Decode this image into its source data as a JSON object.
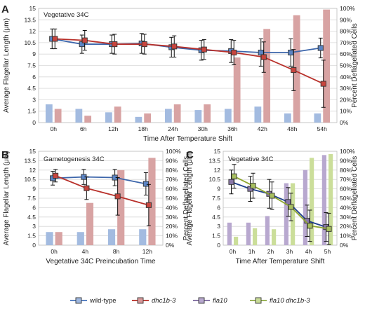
{
  "chart_data": [
    {
      "panel": "A",
      "type": "bar+line",
      "title": "Vegetative 34C",
      "xlabel": "Time After Temperature Shift",
      "ylabel": "Average Flagellar Length (μm)",
      "y2label": "Percent Deflagellated Cells",
      "ylim": [
        0,
        15
      ],
      "yticks": [
        "0",
        "1.5",
        "3",
        "4.5",
        "6",
        "7.5",
        "9",
        "10.5",
        "12",
        "13.5",
        "15"
      ],
      "y2lim": [
        0,
        100
      ],
      "y2ticks": [
        "0%",
        "10%",
        "20%",
        "30%",
        "40%",
        "50%",
        "60%",
        "70%",
        "80%",
        "90%",
        "100%"
      ],
      "categories": [
        "0h",
        "6h",
        "12h",
        "18h",
        "24h",
        "30h",
        "36h",
        "42h",
        "48h",
        "54h"
      ],
      "bars": [
        {
          "series": "wild-type",
          "values": [
            16,
            12,
            9,
            5,
            12,
            11,
            12,
            14,
            8,
            8
          ]
        },
        {
          "series": "dhc1b-3",
          "values": [
            12,
            6,
            14,
            8,
            16,
            16,
            57,
            82,
            94,
            99
          ]
        }
      ],
      "lines": [
        {
          "series": "wild-type",
          "values": [
            11.0,
            10.3,
            10.3,
            10.4,
            9.9,
            9.5,
            9.4,
            9.2,
            9.2,
            9.8
          ],
          "err": [
            1.3,
            1.2,
            1.2,
            1.3,
            1.3,
            1.3,
            1.5,
            1.8,
            1.8,
            1.3
          ]
        },
        {
          "series": "dhc1b-3",
          "values": [
            11.0,
            10.8,
            10.3,
            10.3,
            10.0,
            9.6,
            9.2,
            8.6,
            6.9,
            5.1
          ],
          "err": [
            1.3,
            1.3,
            1.3,
            1.3,
            1.4,
            1.3,
            1.6,
            2.0,
            2.7,
            3.1
          ]
        }
      ]
    },
    {
      "panel": "B",
      "type": "bar+line",
      "title": "Gametogenesis 34C",
      "xlabel": "Vegetative 34C Preincubation Time",
      "ylabel": "Average Flagellar Length (μm)",
      "y2label": "Percent Deflagellated Cells",
      "ylim": [
        0,
        15
      ],
      "yticks": [
        "0",
        "1.5",
        "3",
        "4.5",
        "6",
        "7.5",
        "9",
        "10.5",
        "12",
        "13.5",
        "15"
      ],
      "y2lim": [
        0,
        100
      ],
      "y2ticks": [
        "0%",
        "10%",
        "20%",
        "30%",
        "40%",
        "50%",
        "60%",
        "70%",
        "80%",
        "90%",
        "100%"
      ],
      "categories": [
        "0h",
        "4h",
        "8h",
        "12h"
      ],
      "bars": [
        {
          "series": "wild-type",
          "values": [
            14,
            14,
            17,
            17
          ]
        },
        {
          "series": "dhc1b-3",
          "values": [
            14,
            45,
            80,
            93
          ]
        }
      ],
      "lines": [
        {
          "series": "wild-type",
          "values": [
            10.7,
            10.9,
            10.8,
            9.8
          ],
          "err": [
            1.1,
            1.2,
            1.3,
            1.8
          ]
        },
        {
          "series": "dhc1b-3",
          "values": [
            11.1,
            9.1,
            7.8,
            6.4
          ],
          "err": [
            1.0,
            1.8,
            3.0,
            3.3
          ]
        }
      ]
    },
    {
      "panel": "C",
      "type": "bar+line",
      "title": "Vegetative 34C",
      "xlabel": "Time After Temperature Shift",
      "ylabel": "Average Flagellar Length (μm)",
      "y2label": "Percent Deflagellated Cells",
      "ylim": [
        0,
        15
      ],
      "yticks": [
        "0",
        "1.5",
        "3",
        "4.5",
        "6",
        "7.5",
        "9",
        "10.5",
        "12",
        "13.5",
        "15"
      ],
      "y2lim": [
        0,
        100
      ],
      "y2ticks": [
        "0%",
        "10%",
        "20%",
        "30%",
        "40%",
        "50%",
        "60%",
        "70%",
        "80%",
        "90%",
        "100%"
      ],
      "categories": [
        "0h",
        "1h",
        "2h",
        "3h",
        "4h",
        "5h"
      ],
      "bars": [
        {
          "series": "fla10",
          "values": [
            24,
            24,
            31,
            66,
            80,
            96
          ]
        },
        {
          "series": "fla10 dhc1b-3",
          "values": [
            9,
            18,
            17,
            66,
            93,
            97
          ]
        }
      ],
      "lines": [
        {
          "series": "fla10",
          "values": [
            10.1,
            9.0,
            8.2,
            6.9,
            3.9,
            2.9
          ],
          "err": [
            1.9,
            2.0,
            2.3,
            2.3,
            2.5,
            2.3
          ]
        },
        {
          "series": "fla10 dhc1b-3",
          "values": [
            11.0,
            9.5,
            7.9,
            6.1,
            3.1,
            2.6
          ],
          "err": [
            1.9,
            2.0,
            2.2,
            2.2,
            2.5,
            2.5
          ]
        }
      ]
    }
  ],
  "legend": [
    {
      "label": "wild-type",
      "italic": false,
      "color": "#5b84c4",
      "bar": "#9fb8e0"
    },
    {
      "label": "dhc1b-3",
      "italic": true,
      "color": "#c0453e",
      "bar": "#d9999a"
    },
    {
      "label": "fla10",
      "italic": true,
      "color": "#8a78a8",
      "bar": "#b8a8cf"
    },
    {
      "label": "fla10  dhc1b-3",
      "italic": true,
      "color": "#9bb45a",
      "bar": "#c9dc98"
    }
  ],
  "colors": {
    "wild-type": {
      "line": "#3d66ab",
      "marker": "#5b84c4",
      "bar": "#a3bbe0"
    },
    "dhc1b-3": {
      "line": "#b8302a",
      "marker": "#c8453e",
      "bar": "#d8a3a3"
    },
    "fla10": {
      "line": "#1f3f8c",
      "marker": "#8a78a8",
      "bar": "#b8a8cf"
    },
    "fla10 dhc1b-3": {
      "line": "#8fa62e",
      "marker": "#a8c060",
      "bar": "#cbde9a"
    }
  }
}
